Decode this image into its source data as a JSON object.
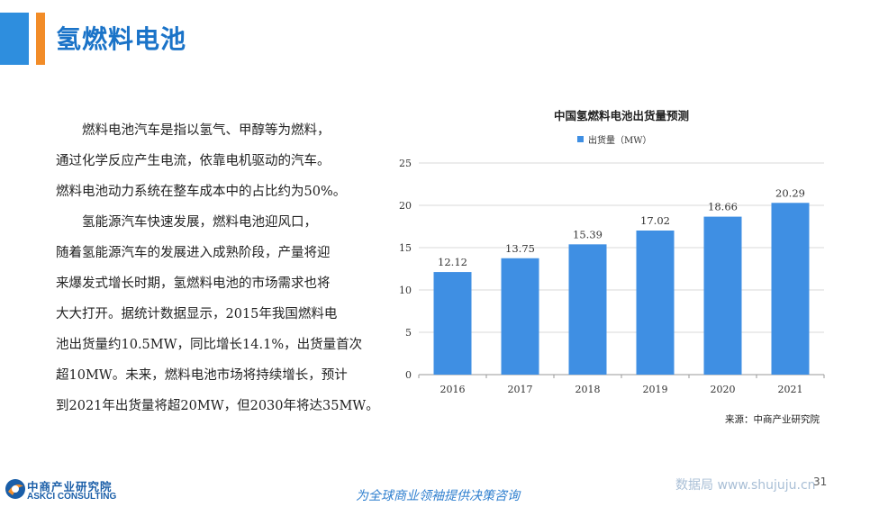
{
  "header": {
    "title": "氢燃料电池"
  },
  "body": {
    "paragraphs": [
      [
        "　　燃料电池汽车是指以氢气、甲醇等为燃料，",
        "通过化学反应产生电流，依靠电机驱动的汽车。",
        "燃料电池动力系统在整车成本中的占比约为50%。"
      ],
      [
        "　　氢能源汽车快速发展，燃料电池迎风口，",
        "随着氢能源汽车的发展进入成熟阶段，产量将迎",
        "来爆发式增长时期，氢燃料电池的市场需求也将",
        "大大打开。据统计数据显示，2015年我国燃料电",
        "池出货量约10.5MW，同比增长14.1%，出货量首次",
        "超10MW。未来，燃料电池市场将持续增长，预计",
        "到2021年出货量将超20MW，但2030年将达35MW。"
      ]
    ]
  },
  "chart_data": {
    "type": "bar",
    "title": "中国氢燃料电池出货量预测",
    "categories": [
      "2016",
      "2017",
      "2018",
      "2019",
      "2020",
      "2021"
    ],
    "series": [
      {
        "name": "出货量（MW）",
        "values": [
          12.12,
          13.75,
          15.39,
          17.02,
          18.66,
          20.29
        ],
        "color": "#3f8fe3"
      }
    ],
    "data_labels": [
      "12.12",
      "13.75",
      "15.39",
      "17.02",
      "18.66",
      "20.29"
    ],
    "ylim": [
      0,
      25
    ],
    "yticks": [
      0,
      5,
      10,
      15,
      20,
      25
    ],
    "grid": true,
    "legend_position": "top-left",
    "xlabel": "",
    "ylabel": ""
  },
  "source": "来源：中商产业研究院",
  "footer": {
    "logo_cn": "中商产业研究院",
    "logo_en": "ASKCI CONSULTING",
    "slogan": "为全球商业领袖提供决策咨询",
    "watermark": "数据局  www.shujuju.cn",
    "page_number": "31"
  },
  "colors": {
    "accent_blue": "#2e8ede",
    "accent_orange": "#f28c28",
    "title_blue": "#1a73c8",
    "bar_blue": "#3f8fe3"
  }
}
